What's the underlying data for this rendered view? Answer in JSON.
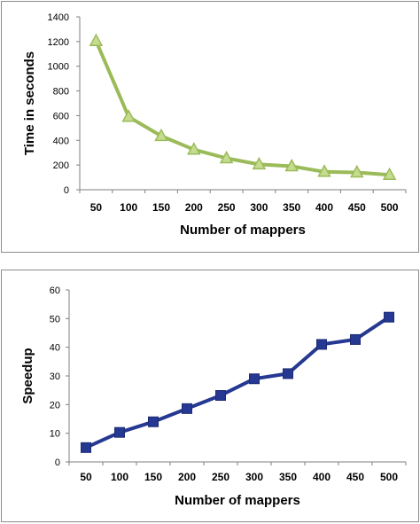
{
  "chart_data": [
    {
      "type": "line",
      "xlabel": "Number of mappers",
      "ylabel": "Time in seconds",
      "categories": [
        "50",
        "100",
        "150",
        "200",
        "250",
        "300",
        "350",
        "400",
        "450",
        "500"
      ],
      "series": [
        {
          "values": [
            1205,
            590,
            435,
            325,
            255,
            205,
            190,
            145,
            140,
            120
          ],
          "color": "#9bbb59",
          "marker": "triangle"
        }
      ],
      "ylim": [
        0,
        1400
      ],
      "yticks": [
        "0",
        "200",
        "400",
        "600",
        "800",
        "1000",
        "1200",
        "1400"
      ],
      "grid": false,
      "legend": "none"
    },
    {
      "type": "line",
      "xlabel": "Number of mappers",
      "ylabel": "Speedup",
      "categories": [
        "50",
        "100",
        "150",
        "200",
        "250",
        "300",
        "350",
        "400",
        "450",
        "500"
      ],
      "series": [
        {
          "values": [
            5,
            10.3,
            14,
            18.6,
            23.2,
            29,
            30.8,
            41,
            42.7,
            50.5
          ],
          "color": "#253892",
          "marker": "square"
        }
      ],
      "ylim": [
        0,
        60
      ],
      "yticks": [
        "0",
        "10",
        "20",
        "30",
        "40",
        "50",
        "60"
      ],
      "grid": false,
      "legend": "none"
    }
  ]
}
